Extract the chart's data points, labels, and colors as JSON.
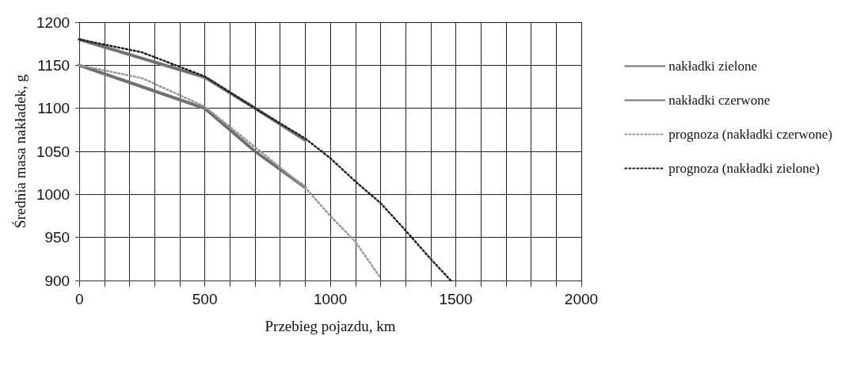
{
  "chart_data": {
    "type": "line",
    "xlabel": "Przebieg pojazdu, km",
    "ylabel": "Średnia masa nakładek, g",
    "xlim": [
      0,
      2000
    ],
    "ylim": [
      900,
      1200
    ],
    "xticks": [
      0,
      {
        "value": 100,
        "label": null
      },
      {
        "value": 200,
        "label": null
      },
      {
        "value": 300,
        "label": null
      },
      {
        "value": 400,
        "label": null
      },
      500,
      {
        "value": 600,
        "label": null
      },
      {
        "value": 700,
        "label": null
      },
      {
        "value": 800,
        "label": null
      },
      {
        "value": 900,
        "label": null
      },
      1000,
      {
        "value": 1100,
        "label": null
      },
      {
        "value": 1200,
        "label": null
      },
      {
        "value": 1300,
        "label": null
      },
      {
        "value": 1400,
        "label": null
      },
      1500,
      {
        "value": 1600,
        "label": null
      },
      {
        "value": 1700,
        "label": null
      },
      {
        "value": 1800,
        "label": null
      },
      {
        "value": 1900,
        "label": null
      },
      2000
    ],
    "yticks": [
      900,
      950,
      1000,
      1050,
      1100,
      1150,
      1200
    ],
    "grid": true,
    "legend": "right",
    "marker": "none",
    "series": [
      {
        "name": "nakładki zielone",
        "color": "#707070",
        "line_style": "solid",
        "x": [
          0,
          250,
          500,
          700,
          900
        ],
        "values": [
          1180,
          1158,
          1136,
          1100,
          1063
        ]
      },
      {
        "name": "nakładki czerwone",
        "color": "#707070",
        "line_style": "solid",
        "x": [
          0,
          250,
          500,
          700,
          900
        ],
        "values": [
          1150,
          1125,
          1100,
          1050,
          1008
        ]
      },
      {
        "name": "prognoza (nakładki czerwone)",
        "color": "#999999",
        "line_style": "dotted",
        "x": [
          0,
          250,
          500,
          700,
          900,
          1000,
          1100,
          1200
        ],
        "values": [
          1150,
          1135,
          1102,
          1055,
          1008,
          975,
          945,
          903
        ]
      },
      {
        "name": "prognoza (nakładki zielone)",
        "color": "#222222",
        "line_style": "dotted",
        "x": [
          0,
          250,
          500,
          700,
          900,
          1000,
          1100,
          1200,
          1300,
          1400,
          1480
        ],
        "values": [
          1180,
          1165,
          1137,
          1100,
          1065,
          1042,
          1015,
          990,
          958,
          925,
          900
        ]
      }
    ]
  }
}
